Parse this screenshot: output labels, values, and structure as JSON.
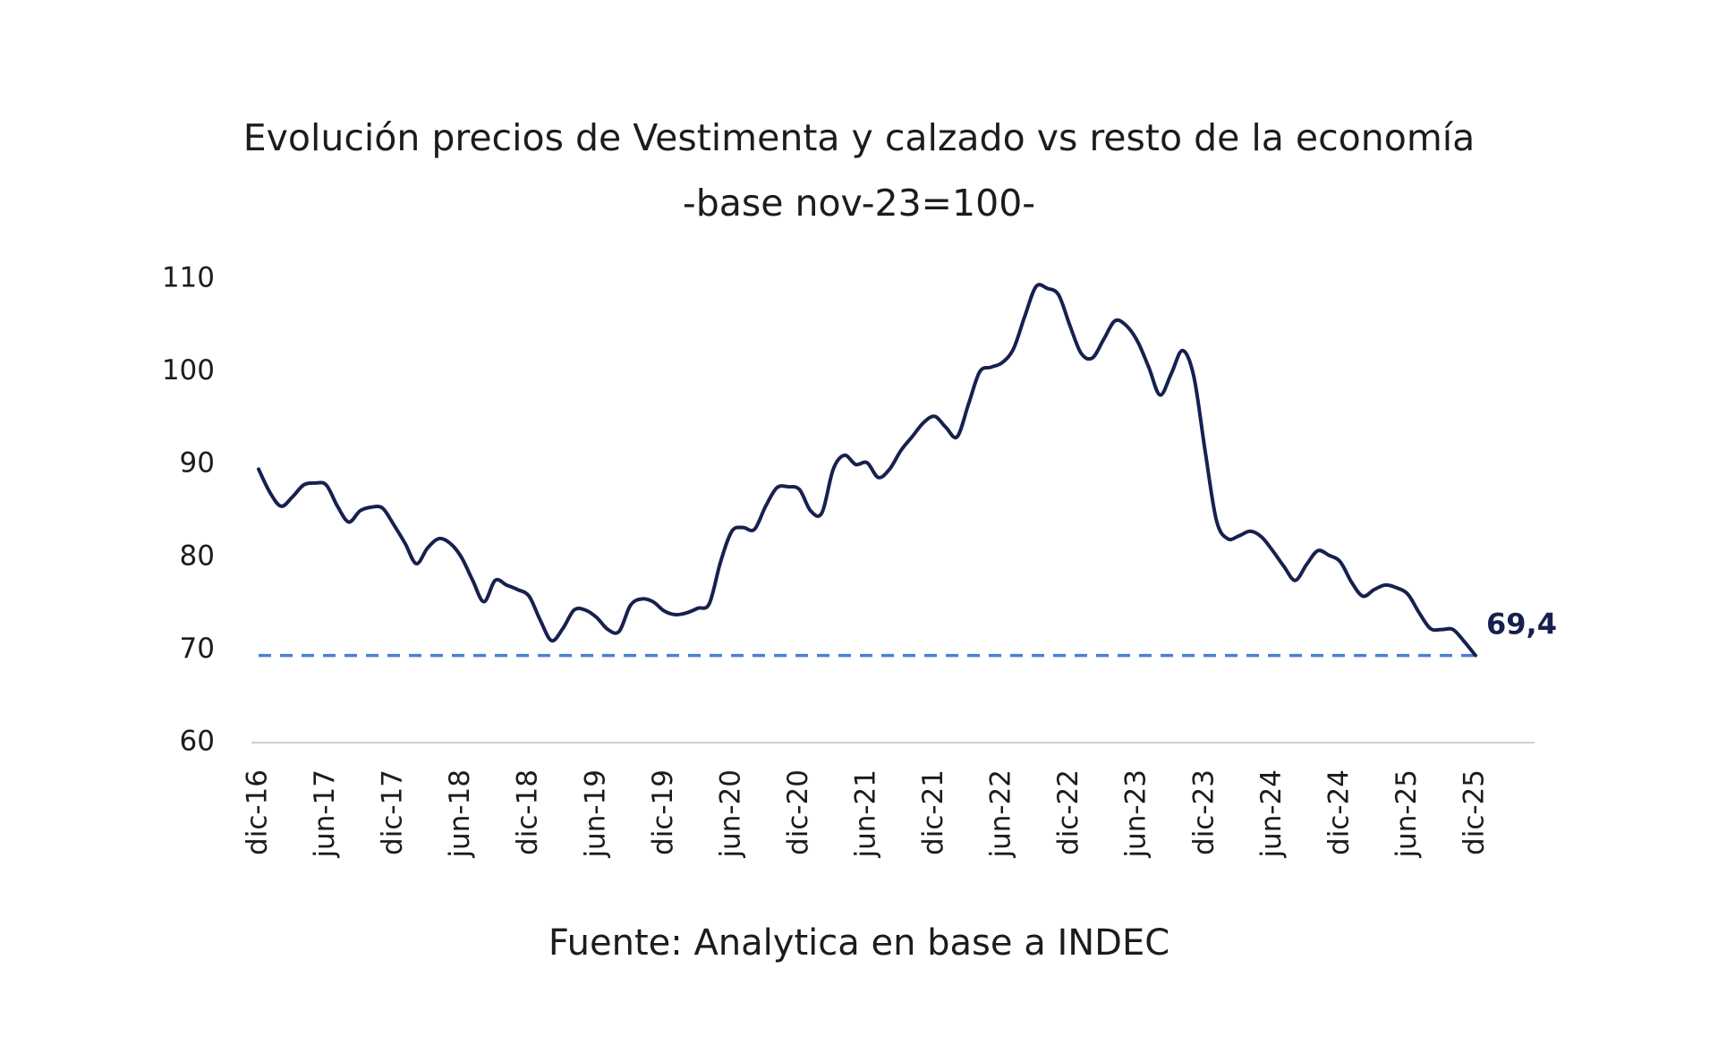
{
  "chart_data": {
    "type": "line",
    "title": "Evolución precios de Vestimenta y calzado vs resto de la economía",
    "subtitle": "-base nov-23=100-",
    "source": "Fuente: Analytica en base a INDEC",
    "categories": [
      "dic-16",
      null,
      null,
      null,
      null,
      null,
      "jun-17",
      null,
      null,
      null,
      null,
      null,
      "dic-17",
      null,
      null,
      null,
      null,
      null,
      "jun-18",
      null,
      null,
      null,
      null,
      null,
      "dic-18",
      null,
      null,
      null,
      null,
      null,
      "jun-19",
      null,
      null,
      null,
      null,
      null,
      "dic-19",
      null,
      null,
      null,
      null,
      null,
      "jun-20",
      null,
      null,
      null,
      null,
      null,
      "dic-20",
      null,
      null,
      null,
      null,
      null,
      "jun-21",
      null,
      null,
      null,
      null,
      null,
      "dic-21",
      null,
      null,
      null,
      null,
      null,
      "jun-22",
      null,
      null,
      null,
      null,
      null,
      "dic-22",
      null,
      null,
      null,
      null,
      null,
      "jun-23",
      null,
      null,
      null,
      null,
      null,
      "dic-23",
      null,
      null,
      null,
      null,
      null,
      "jun-24",
      null,
      null,
      null,
      null,
      null,
      "dic-24",
      null,
      null,
      null,
      null,
      null,
      "jun-25",
      null,
      null,
      null,
      null,
      null,
      "dic-25"
    ],
    "values": [
      89.5,
      87,
      85.5,
      86.5,
      87.8,
      88,
      87.8,
      85.5,
      83.8,
      85,
      85.4,
      85.3,
      83.5,
      81.5,
      79.3,
      81,
      82,
      81.5,
      80,
      77.5,
      75.2,
      77.5,
      77,
      76.5,
      75.8,
      73.2,
      71,
      72.3,
      74.3,
      74.3,
      73.5,
      72.2,
      72,
      74.8,
      75.5,
      75.2,
      74.2,
      73.8,
      74,
      74.5,
      75,
      79.5,
      82.8,
      83.2,
      83,
      85.5,
      87.5,
      87.6,
      87.3,
      85,
      84.8,
      89.5,
      91,
      90,
      90.2,
      88.6,
      89.5,
      91.5,
      93,
      94.5,
      95.2,
      94,
      93,
      96.5,
      100,
      100.5,
      101,
      102.5,
      106,
      109.2,
      109,
      108.3,
      105,
      102,
      101.5,
      103.5,
      105.5,
      105,
      103.3,
      100.5,
      97.5,
      99.8,
      102.3,
      99.5,
      91.5,
      84,
      82,
      82.3,
      82.8,
      82.2,
      80.7,
      79,
      77.5,
      79.2,
      80.7,
      80.2,
      79.5,
      77.3,
      75.8,
      76.5,
      77,
      76.7,
      76,
      74,
      72.3,
      72.2,
      72.2,
      70.9,
      69.4
    ],
    "value_labels": [
      null,
      null,
      null,
      null,
      null,
      null,
      null,
      null,
      null,
      null,
      null,
      null,
      null,
      null,
      null,
      null,
      null,
      null,
      null,
      null,
      null,
      null,
      null,
      null,
      null,
      null,
      null,
      null,
      null,
      null,
      null,
      null,
      null,
      null,
      null,
      null,
      null,
      null,
      null,
      null,
      null,
      null,
      null,
      null,
      null,
      null,
      null,
      null,
      null,
      null,
      null,
      null,
      null,
      null,
      null,
      null,
      null,
      null,
      null,
      null,
      null,
      null,
      null,
      null,
      null,
      null,
      null,
      null,
      null,
      null,
      null,
      null,
      null,
      null,
      null,
      null,
      null,
      null,
      null,
      null,
      null,
      null,
      null,
      null,
      null,
      null,
      null,
      null,
      null,
      null,
      null,
      null,
      null,
      null,
      null,
      null,
      null,
      null,
      null,
      null,
      null,
      null,
      null,
      null,
      null,
      null,
      null,
      null,
      "69,4"
    ],
    "color": "#16214f",
    "reference_line_color": "#4a80d6",
    "ylim": [
      60,
      110
    ],
    "yticks": [
      60,
      70,
      80,
      90,
      100,
      110
    ]
  }
}
